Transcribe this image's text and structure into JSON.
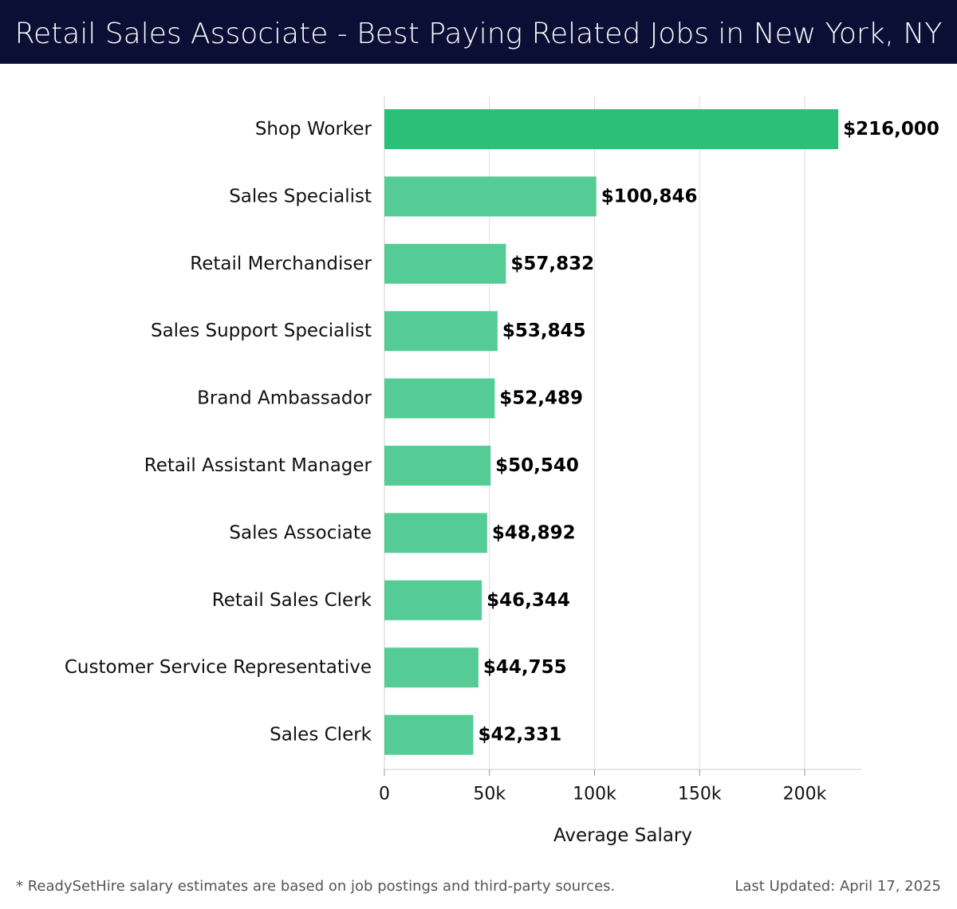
{
  "header": {
    "title": "Retail Sales Associate - Best Paying Related Jobs in New York, NY",
    "background_color": "#0b0f35"
  },
  "chart_data": {
    "type": "bar",
    "orientation": "horizontal",
    "title": "Retail Sales Associate - Best Paying Related Jobs in New York, NY",
    "categories": [
      "Shop Worker",
      "Sales Specialist",
      "Retail Merchandiser",
      "Sales Support Specialist",
      "Brand Ambassador",
      "Retail Assistant Manager",
      "Sales Associate",
      "Retail Sales Clerk",
      "Customer Service Representative",
      "Sales Clerk"
    ],
    "values": [
      216000,
      100846,
      57832,
      53845,
      52489,
      50540,
      48892,
      46344,
      44755,
      42331
    ],
    "value_labels": [
      "$216,000",
      "$100,846",
      "$57,832",
      "$53,845",
      "$52,489",
      "$50,540",
      "$48,892",
      "$46,344",
      "$44,755",
      "$42,331"
    ],
    "xlabel": "Average Salary",
    "ylabel": "",
    "xlim": [
      0,
      227000
    ],
    "xticks": [
      0,
      50000,
      100000,
      150000,
      200000
    ],
    "xtick_labels": [
      "0",
      "50k",
      "100k",
      "150k",
      "200k"
    ],
    "grid": "vertical",
    "colors": {
      "highlight_bar": "#2bbf77",
      "bar": "#55cc95",
      "grid": "#dddddd"
    }
  },
  "footer": {
    "note": "* ReadySetHire salary estimates are based on job postings and third-party sources.",
    "updated": "Last Updated: April 17, 2025"
  }
}
